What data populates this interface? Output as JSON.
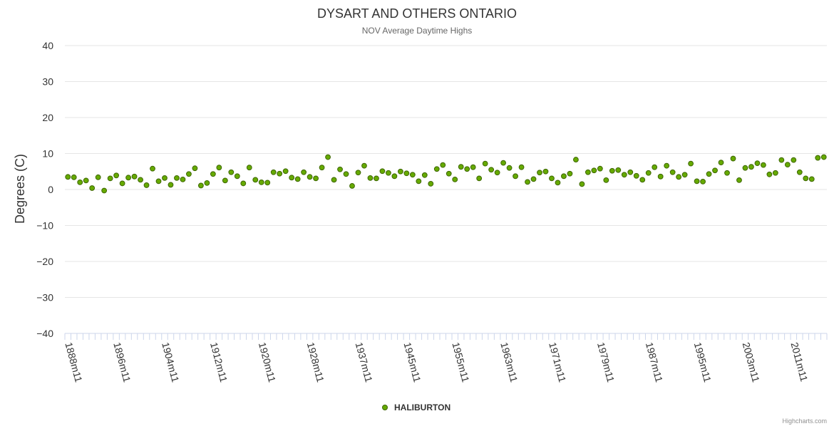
{
  "chart_data": {
    "type": "scatter",
    "title": "DYSART AND OTHERS ONTARIO",
    "subtitle": "NOV Average Daytime Highs",
    "ylabel": "Degrees (C)",
    "xlabel": "",
    "ylim": [
      -40,
      40
    ],
    "yticks": [
      40,
      30,
      20,
      10,
      0,
      -10,
      -20,
      -30,
      -40
    ],
    "ytick_labels": [
      "40",
      "30",
      "20",
      "10",
      "0",
      "−10",
      "−20",
      "−30",
      "−40"
    ],
    "x_start_year": 1888,
    "x_end_year": 2014,
    "x_tick_labels": [
      "1888m11",
      "1896m11",
      "1904m11",
      "1912m11",
      "1920m11",
      "1928m11",
      "1937m11",
      "1945m11",
      "1955m11",
      "1963m11",
      "1971m11",
      "1979m11",
      "1987m11",
      "1995m11",
      "2003m11",
      "2011m11"
    ],
    "x_tick_indices": [
      0,
      8,
      16,
      24,
      32,
      40,
      48,
      56,
      64,
      72,
      80,
      88,
      96,
      104,
      112,
      120
    ],
    "grid": true,
    "legend_position": "bottom-center",
    "series": [
      {
        "name": "HALIBURTON",
        "color": "#66aa00",
        "values": [
          3.5,
          3.4,
          2.0,
          2.5,
          0.4,
          3.4,
          -0.3,
          3.1,
          3.9,
          1.7,
          3.3,
          3.6,
          2.7,
          1.2,
          5.8,
          2.3,
          3.2,
          1.3,
          3.2,
          2.8,
          4.3,
          5.9,
          1.1,
          1.8,
          4.3,
          6.1,
          2.5,
          4.8,
          3.7,
          1.7,
          6.1,
          2.7,
          2.0,
          1.9,
          4.8,
          4.4,
          5.1,
          3.3,
          2.9,
          4.8,
          3.5,
          3.1,
          6.1,
          9.0,
          2.7,
          5.6,
          4.3,
          1.0,
          4.7,
          6.6,
          3.2,
          3.1,
          5.1,
          4.6,
          3.7,
          5.0,
          4.5,
          4.1,
          2.3,
          4.0,
          1.6,
          5.7,
          6.8,
          4.4,
          2.8,
          6.3,
          5.7,
          6.2,
          3.1,
          7.2,
          5.5,
          4.7,
          7.4,
          6.0,
          3.7,
          6.2,
          2.1,
          2.9,
          4.7,
          5.0,
          3.1,
          1.9,
          3.7,
          4.4,
          8.3,
          1.5,
          4.8,
          5.3,
          5.8,
          2.6,
          5.2,
          5.4,
          4.1,
          4.8,
          3.8,
          2.7,
          4.6,
          6.2,
          3.6,
          6.6,
          4.8,
          3.5,
          4.1,
          7.2,
          2.3,
          2.2,
          4.3,
          5.3,
          7.5,
          4.6,
          8.6,
          2.6,
          6.0,
          6.3,
          7.3,
          6.8,
          4.2,
          4.6,
          8.2,
          6.9,
          8.2,
          4.8,
          3.1,
          2.9,
          8.8,
          9.0
        ]
      }
    ]
  },
  "credits": "Highcharts.com"
}
